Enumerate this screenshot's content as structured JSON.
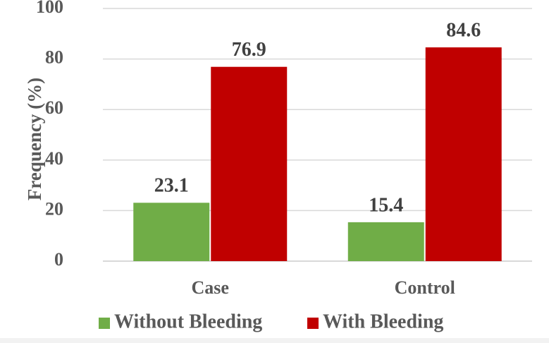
{
  "chart_data": {
    "type": "bar",
    "title": "",
    "xlabel": "",
    "ylabel": "Frequency (%)",
    "ylim": [
      0,
      100
    ],
    "yticks": [
      0,
      20,
      40,
      60,
      80,
      100
    ],
    "categories": [
      "Case",
      "Control"
    ],
    "series": [
      {
        "name": "Without Bleeding",
        "color": "#70ad47",
        "values": [
          23.1,
          15.4
        ],
        "labels": [
          "23.1",
          "15.4"
        ]
      },
      {
        "name": "With Bleeding",
        "color": "#c00000",
        "values": [
          76.9,
          84.6
        ],
        "labels": [
          "76.9",
          "84.6"
        ]
      }
    ],
    "legend_position": "bottom"
  }
}
